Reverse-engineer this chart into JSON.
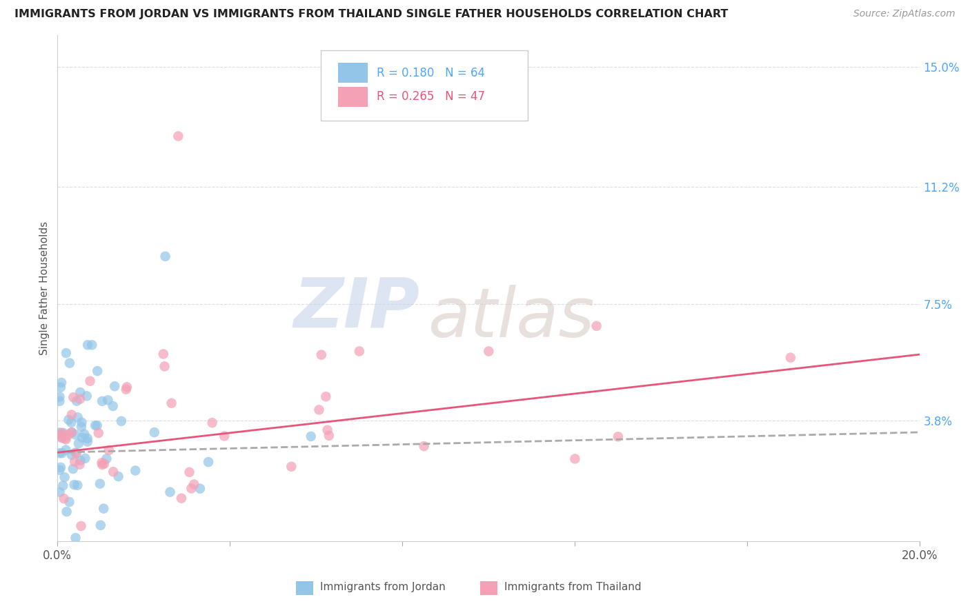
{
  "title": "IMMIGRANTS FROM JORDAN VS IMMIGRANTS FROM THAILAND SINGLE FATHER HOUSEHOLDS CORRELATION CHART",
  "source": "Source: ZipAtlas.com",
  "ylabel": "Single Father Households",
  "xlim": [
    0.0,
    0.2
  ],
  "ylim": [
    0.0,
    0.16
  ],
  "yticks_right": [
    0.0,
    0.038,
    0.075,
    0.112,
    0.15
  ],
  "ytick_labels_right": [
    "",
    "3.8%",
    "7.5%",
    "11.2%",
    "15.0%"
  ],
  "jordan_R": 0.18,
  "jordan_N": 64,
  "thailand_R": 0.265,
  "thailand_N": 47,
  "jordan_color": "#92C5E8",
  "thailand_color": "#F4A0B5",
  "jordan_line_color": "#AAAAAA",
  "thailand_line_color": "#E8547A",
  "jordan_line_style": "--",
  "thailand_line_style": "-",
  "watermark_zip_color": "#C8D4E8",
  "watermark_atlas_color": "#D0C8C0",
  "background_color": "#FFFFFF",
  "grid_color": "#DDDDDD",
  "legend_jordan_color": "#92C5E8",
  "legend_thailand_color": "#F4A0B5",
  "legend_text_color_jordan": "#4DA6FF",
  "legend_text_color_thailand": "#E8547A",
  "right_axis_color": "#4DA6FF",
  "bottom_label_color": "#4DA6FF"
}
